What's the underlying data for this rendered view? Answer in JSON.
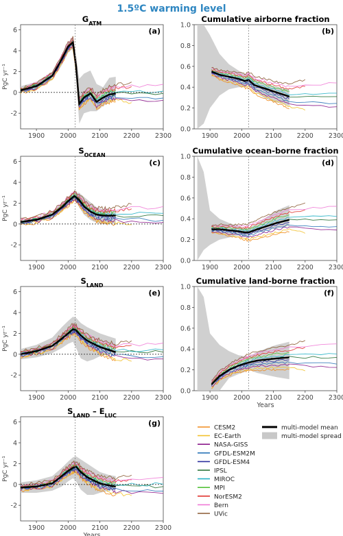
{
  "figure": {
    "title": "1.5ºC warming level",
    "title_color": "#2e86c1",
    "xlabel": "Years"
  },
  "legend": {
    "models": [
      {
        "name": "CESM2",
        "color": "#f08a1c"
      },
      {
        "name": "EC-Earth",
        "color": "#f2c12e"
      },
      {
        "name": "NASA-GISS",
        "color": "#8b1a8b"
      },
      {
        "name": "GFDL-ESM2M",
        "color": "#2a74b8"
      },
      {
        "name": "GFDL-ESM4",
        "color": "#2b2f9e"
      },
      {
        "name": "IPSL",
        "color": "#1f6b2f"
      },
      {
        "name": "MIROC",
        "color": "#27b3c7"
      },
      {
        "name": "MPI",
        "color": "#55c23a"
      },
      {
        "name": "NorESM2",
        "color": "#e0342f"
      },
      {
        "name": "Bern",
        "color": "#f07ad6"
      },
      {
        "name": "UVic",
        "color": "#8a5a32"
      }
    ],
    "mean_label": "multi-model mean",
    "spread_label": "multi-model spread",
    "mean_color": "#000000",
    "spread_color": "#c8c8c8"
  },
  "chart_data": [
    {
      "id": "a",
      "type": "line",
      "panel_label": "(a)",
      "title_main": "G",
      "title_sub": "ATM",
      "ylabel": "PgC yr⁻¹",
      "xlim": [
        1850,
        2300
      ],
      "ylim": [
        -3.5,
        6.5
      ],
      "xticks": [
        1900,
        2000,
        2100,
        2200,
        2300
      ],
      "yticks": [
        -2,
        0,
        2,
        4,
        6
      ],
      "vline": 2022,
      "hline": 0,
      "mean": {
        "x": [
          1850,
          1900,
          1950,
          1980,
          2000,
          2015,
          2025,
          2035,
          2050,
          2070,
          2090,
          2110,
          2130,
          2150
        ],
        "y": [
          0.2,
          0.6,
          1.6,
          3.2,
          4.4,
          4.8,
          2.5,
          -1.1,
          -0.5,
          -0.1,
          -0.9,
          -0.5,
          -0.2,
          -0.1
        ]
      },
      "spread": {
        "x": [
          1850,
          1900,
          1950,
          1980,
          2000,
          2015,
          2025,
          2035,
          2050,
          2070,
          2090,
          2110,
          2130,
          2150
        ],
        "lo": [
          0.0,
          0.3,
          1.2,
          2.6,
          3.8,
          4.2,
          1.4,
          -3.0,
          -2.0,
          -1.8,
          -1.8,
          -1.3,
          -1.0,
          -0.6
        ],
        "hi": [
          0.6,
          1.0,
          2.0,
          3.6,
          4.8,
          5.2,
          3.6,
          1.3,
          1.8,
          2.1,
          0.8,
          0.5,
          1.4,
          1.5
        ]
      }
    },
    {
      "id": "b",
      "type": "line",
      "panel_label": "(b)",
      "title_main": "Cumulative airborne fraction",
      "title_sub": "",
      "ylabel": "",
      "xlim": [
        1850,
        2300
      ],
      "ylim": [
        0,
        1
      ],
      "xticks": [
        1900,
        2000,
        2100,
        2200,
        2300
      ],
      "yticks": [
        0.0,
        0.2,
        0.4,
        0.6,
        0.8,
        1.0
      ],
      "vline": 2022,
      "hline": null,
      "mean": {
        "x": [
          1905,
          1930,
          1960,
          1990,
          2010,
          2022,
          2040,
          2070,
          2100,
          2130,
          2150
        ],
        "y": [
          0.55,
          0.52,
          0.5,
          0.48,
          0.46,
          0.47,
          0.42,
          0.39,
          0.36,
          0.33,
          0.31
        ]
      },
      "spread": {
        "x": [
          1860,
          1880,
          1900,
          1930,
          1960,
          1990,
          2010,
          2022,
          2040,
          2070,
          2100,
          2130,
          2150
        ],
        "lo": [
          0.0,
          0.05,
          0.2,
          0.32,
          0.38,
          0.4,
          0.4,
          0.42,
          0.36,
          0.3,
          0.26,
          0.24,
          0.22
        ],
        "hi": [
          1.0,
          1.0,
          0.9,
          0.72,
          0.62,
          0.56,
          0.52,
          0.53,
          0.48,
          0.44,
          0.41,
          0.39,
          0.38
        ]
      }
    },
    {
      "id": "c",
      "type": "line",
      "panel_label": "(c)",
      "title_main": "S",
      "title_sub": "OCEAN",
      "ylabel": "PgC yr⁻¹",
      "xlim": [
        1850,
        2300
      ],
      "ylim": [
        -3.5,
        6.5
      ],
      "xticks": [
        1900,
        2000,
        2100,
        2200,
        2300
      ],
      "yticks": [
        -2,
        0,
        2,
        4,
        6
      ],
      "vline": 2022,
      "hline": 0,
      "mean": {
        "x": [
          1850,
          1900,
          1950,
          1980,
          2000,
          2020,
          2035,
          2050,
          2070,
          2090,
          2110,
          2130,
          2150
        ],
        "y": [
          0.2,
          0.4,
          0.9,
          1.6,
          2.2,
          2.7,
          2.3,
          1.7,
          1.2,
          0.9,
          0.8,
          0.8,
          0.8
        ]
      },
      "spread": {
        "x": [
          1850,
          1900,
          1950,
          1980,
          2000,
          2020,
          2035,
          2050,
          2070,
          2090,
          2110,
          2130,
          2150
        ],
        "lo": [
          0.0,
          0.2,
          0.6,
          1.2,
          1.8,
          2.4,
          1.6,
          0.9,
          0.4,
          0.1,
          0.0,
          0.0,
          0.1
        ],
        "hi": [
          0.4,
          0.6,
          1.2,
          2.0,
          2.6,
          3.0,
          3.0,
          2.6,
          2.1,
          1.6,
          1.4,
          1.3,
          1.2
        ]
      }
    },
    {
      "id": "d",
      "type": "line",
      "panel_label": "(d)",
      "title_main": "Cumulative ocean-borne fraction",
      "title_sub": "",
      "ylabel": "",
      "xlim": [
        1850,
        2300
      ],
      "ylim": [
        0,
        1
      ],
      "xticks": [
        1900,
        2000,
        2100,
        2200,
        2300
      ],
      "yticks": [
        0.0,
        0.2,
        0.4,
        0.6,
        0.8,
        1.0
      ],
      "vline": 2022,
      "hline": null,
      "mean": {
        "x": [
          1905,
          1930,
          1960,
          1990,
          2010,
          2022,
          2050,
          2080,
          2110,
          2150
        ],
        "y": [
          0.3,
          0.3,
          0.29,
          0.28,
          0.27,
          0.27,
          0.3,
          0.33,
          0.36,
          0.39
        ]
      },
      "spread": {
        "x": [
          1860,
          1880,
          1900,
          1930,
          1960,
          1990,
          2010,
          2022,
          2050,
          2080,
          2110,
          2150
        ],
        "lo": [
          0.0,
          0.1,
          0.15,
          0.2,
          0.22,
          0.24,
          0.24,
          0.25,
          0.27,
          0.29,
          0.31,
          0.33
        ],
        "hi": [
          1.0,
          0.85,
          0.48,
          0.4,
          0.36,
          0.33,
          0.31,
          0.31,
          0.36,
          0.42,
          0.48,
          0.53
        ]
      }
    },
    {
      "id": "e",
      "type": "line",
      "panel_label": "(e)",
      "title_main": "S",
      "title_sub": "LAND",
      "ylabel": "PgC yr⁻¹",
      "xlim": [
        1850,
        2300
      ],
      "ylim": [
        -3.5,
        6.5
      ],
      "xticks": [
        1900,
        2000,
        2100,
        2200,
        2300
      ],
      "yticks": [
        -2,
        0,
        2,
        4,
        6
      ],
      "vline": 2022,
      "hline": 0,
      "mean": {
        "x": [
          1850,
          1900,
          1950,
          1980,
          2000,
          2015,
          2025,
          2040,
          2060,
          2080,
          2100,
          2130,
          2150
        ],
        "y": [
          0.0,
          0.3,
          0.8,
          1.5,
          2.0,
          2.4,
          2.3,
          1.8,
          1.3,
          1.0,
          0.7,
          0.4,
          0.2
        ]
      },
      "spread": {
        "x": [
          1850,
          1900,
          1950,
          1980,
          2000,
          2015,
          2025,
          2040,
          2060,
          2080,
          2100,
          2130,
          2150
        ],
        "lo": [
          -0.5,
          -0.3,
          0.1,
          0.6,
          1.0,
          1.2,
          0.6,
          -0.4,
          -0.7,
          -0.5,
          -0.2,
          0.0,
          0.1
        ],
        "hi": [
          0.5,
          0.9,
          1.6,
          2.6,
          3.2,
          3.6,
          3.5,
          3.0,
          2.6,
          2.3,
          2.0,
          1.7,
          1.5
        ]
      }
    },
    {
      "id": "f",
      "type": "line",
      "panel_label": "(f)",
      "title_main": "Cumulative land-borne fraction",
      "title_sub": "",
      "ylabel": "",
      "xlim": [
        1850,
        2300
      ],
      "ylim": [
        0,
        1
      ],
      "xticks": [
        1900,
        2000,
        2100,
        2200,
        2300
      ],
      "yticks": [
        0.0,
        0.2,
        0.4,
        0.6,
        0.8,
        1.0
      ],
      "vline": 2022,
      "hline": null,
      "mean": {
        "x": [
          1905,
          1930,
          1960,
          1990,
          2010,
          2022,
          2050,
          2080,
          2110,
          2150
        ],
        "y": [
          0.06,
          0.14,
          0.2,
          0.24,
          0.26,
          0.27,
          0.29,
          0.3,
          0.31,
          0.32
        ]
      },
      "spread": {
        "x": [
          1860,
          1880,
          1900,
          1930,
          1960,
          1990,
          2010,
          2022,
          2050,
          2080,
          2110,
          2150
        ],
        "lo": [
          0.0,
          0.0,
          0.0,
          0.0,
          0.12,
          0.16,
          0.18,
          0.2,
          0.17,
          0.15,
          0.13,
          0.11
        ],
        "hi": [
          1.0,
          0.9,
          0.55,
          0.44,
          0.38,
          0.34,
          0.33,
          0.33,
          0.37,
          0.41,
          0.44,
          0.47
        ]
      }
    },
    {
      "id": "g",
      "type": "line",
      "panel_label": "(g)",
      "title_main": "S",
      "title_sub": "LAND",
      "title_main2": " – E",
      "title_sub2": "LUC",
      "ylabel": "PgC yr⁻¹",
      "xlim": [
        1850,
        2300
      ],
      "ylim": [
        -3.5,
        6.5
      ],
      "xticks": [
        1900,
        2000,
        2100,
        2200,
        2300
      ],
      "yticks": [
        -2,
        0,
        2,
        4,
        6
      ],
      "vline": 2022,
      "hline": 0,
      "mean": {
        "x": [
          1850,
          1900,
          1950,
          1980,
          2000,
          2015,
          2025,
          2040,
          2060,
          2080,
          2100,
          2130,
          2150
        ],
        "y": [
          -0.3,
          -0.2,
          0.1,
          0.8,
          1.3,
          1.6,
          1.7,
          1.2,
          0.7,
          0.4,
          0.1,
          -0.1,
          -0.2
        ]
      },
      "spread": {
        "x": [
          1850,
          1900,
          1950,
          1980,
          2000,
          2015,
          2025,
          2040,
          2060,
          2080,
          2100,
          2130,
          2150
        ],
        "lo": [
          -0.8,
          -0.8,
          -0.6,
          -0.2,
          0.3,
          0.6,
          0.3,
          -0.5,
          -1.0,
          -1.0,
          -0.8,
          -0.6,
          -0.5
        ],
        "hi": [
          0.2,
          0.4,
          0.8,
          1.6,
          2.2,
          2.6,
          2.7,
          2.4,
          2.0,
          1.6,
          1.2,
          0.9,
          0.8
        ]
      }
    }
  ]
}
